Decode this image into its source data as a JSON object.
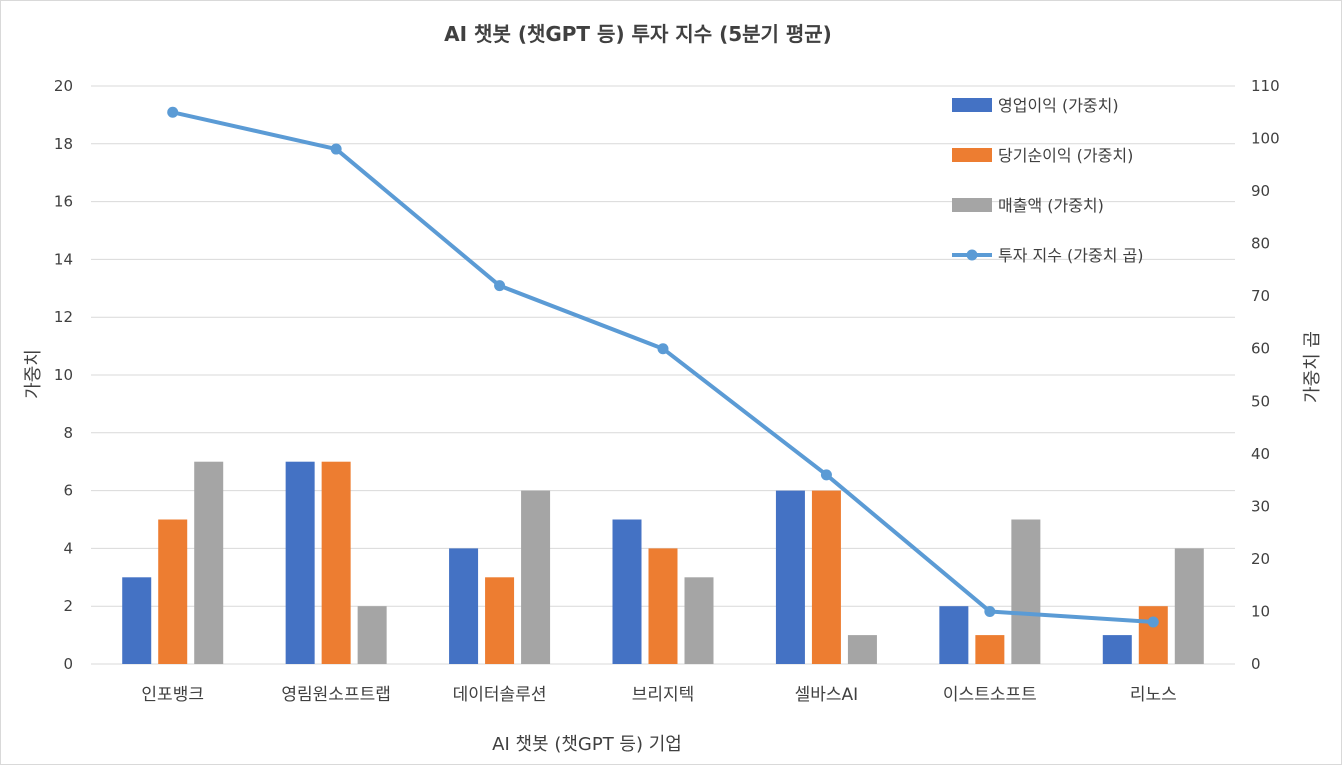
{
  "chart_data": {
    "type": "bar",
    "title": "AI 챗봇 (챗GPT 등) 투자 지수 (5분기 평균)",
    "xlabel": "AI 챗봇 (챗GPT 등) 기업",
    "ylabel": "가중치",
    "y2label": "가중치 곱",
    "categories": [
      "인포뱅크",
      "영림원소프트랩",
      "데이터솔루션",
      "브리지텍",
      "셀바스AI",
      "이스트소프트",
      "리노스"
    ],
    "ylim": [
      0,
      20
    ],
    "y_ticks": [
      0,
      2,
      4,
      6,
      8,
      10,
      12,
      14,
      16,
      18,
      20
    ],
    "y2lim": [
      0,
      110
    ],
    "y2_ticks": [
      0,
      10,
      20,
      30,
      40,
      50,
      60,
      70,
      80,
      90,
      100,
      110
    ],
    "grid": true,
    "legend_position": "top-right",
    "series": [
      {
        "name": "영업이익 (가중치)",
        "type": "bar",
        "axis": "left",
        "color": "#4472c4",
        "values": [
          3,
          7,
          4,
          5,
          6,
          2,
          1
        ]
      },
      {
        "name": "당기순이익 (가중치)",
        "type": "bar",
        "axis": "left",
        "color": "#ed7d31",
        "values": [
          5,
          7,
          3,
          4,
          6,
          1,
          2
        ]
      },
      {
        "name": "매출액  (가중치)",
        "type": "bar",
        "axis": "left",
        "color": "#a5a5a5",
        "values": [
          7,
          2,
          6,
          3,
          1,
          5,
          4
        ]
      },
      {
        "name": "투자 지수 (가중치 곱)",
        "type": "line",
        "axis": "right",
        "color": "#5b9bd5",
        "values": [
          105,
          98,
          72,
          60,
          36,
          10,
          8
        ]
      }
    ]
  }
}
